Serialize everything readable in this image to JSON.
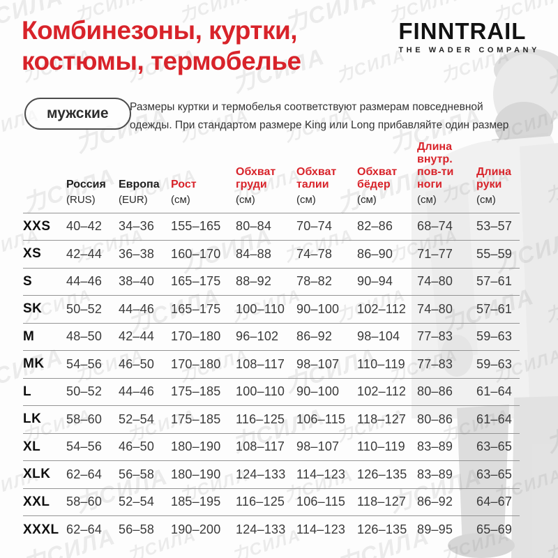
{
  "header": {
    "title": "Комбинезоны, куртки,\nкостюмы, термобелье",
    "brand": "FINNTRAIL",
    "tagline": "THE WADER COMPANY",
    "badge": "мужские",
    "description": "Размеры куртки и термобелья соответствуют размерам повседневной\nодежды. При стандартом размере King или Long прибавляйте один размер"
  },
  "watermark": {
    "text": "力СИЛА"
  },
  "accent_color": "#d8232a",
  "table": {
    "columns": [
      {
        "label": "",
        "sub": "",
        "accent": false
      },
      {
        "label": "Россия",
        "sub": "(RUS)",
        "accent": false
      },
      {
        "label": "Европа",
        "sub": "(EUR)",
        "accent": false
      },
      {
        "label": "Рост",
        "sub": "(см)",
        "accent": true
      },
      {
        "label": "Обхват\nгруди",
        "sub": "(см)",
        "accent": true
      },
      {
        "label": "Обхват\nталии",
        "sub": "(см)",
        "accent": true
      },
      {
        "label": "Обхват\nбёдер",
        "sub": "(см)",
        "accent": true
      },
      {
        "label": "Длина\nвнутр.\nпов-ти\nноги",
        "sub": "(см)",
        "accent": true
      },
      {
        "label": "Длина\nруки",
        "sub": "(см)",
        "accent": true
      }
    ],
    "rows": [
      {
        "size": "XXS",
        "values": [
          "40–42",
          "34–36",
          "155–165",
          "80–84",
          "70–74",
          "82–86",
          "68–74",
          "53–57"
        ]
      },
      {
        "size": "XS",
        "values": [
          "42–44",
          "36–38",
          "160–170",
          "84–88",
          "74–78",
          "86–90",
          "71–77",
          "55–59"
        ]
      },
      {
        "size": "S",
        "values": [
          "44–46",
          "38–40",
          "165–175",
          "88–92",
          "78–82",
          "90–94",
          "74–80",
          "57–61"
        ]
      },
      {
        "size": "SK",
        "values": [
          "50–52",
          "44–46",
          "165–175",
          "100–110",
          "90–100",
          "102–112",
          "74–80",
          "57–61"
        ]
      },
      {
        "size": "M",
        "values": [
          "48–50",
          "42–44",
          "170–180",
          "96–102",
          "86–92",
          "98–104",
          "77–83",
          "59–63"
        ]
      },
      {
        "size": "MK",
        "values": [
          "54–56",
          "46–50",
          "170–180",
          "108–117",
          "98–107",
          "110–119",
          "77–83",
          "59–63"
        ]
      },
      {
        "size": "L",
        "values": [
          "50–52",
          "44–46",
          "175–185",
          "100–110",
          "90–100",
          "102–112",
          "80–86",
          "61–64"
        ]
      },
      {
        "size": "LK",
        "values": [
          "58–60",
          "52–54",
          "175–185",
          "116–125",
          "106–115",
          "118–127",
          "80–86",
          "61–64"
        ]
      },
      {
        "size": "XL",
        "values": [
          "54–56",
          "46–50",
          "180–190",
          "108–117",
          "98–107",
          "110–119",
          "83–89",
          "63–65"
        ]
      },
      {
        "size": "XLK",
        "values": [
          "62–64",
          "56–58",
          "180–190",
          "124–133",
          "114–123",
          "126–135",
          "83–89",
          "63–65"
        ]
      },
      {
        "size": "XXL",
        "values": [
          "58–60",
          "52–54",
          "185–195",
          "116–125",
          "106–115",
          "118–127",
          "86–92",
          "64–67"
        ]
      },
      {
        "size": "XXXL",
        "values": [
          "62–64",
          "56–58",
          "190–200",
          "124–133",
          "114–123",
          "126–135",
          "89–95",
          "65–69"
        ]
      }
    ]
  }
}
